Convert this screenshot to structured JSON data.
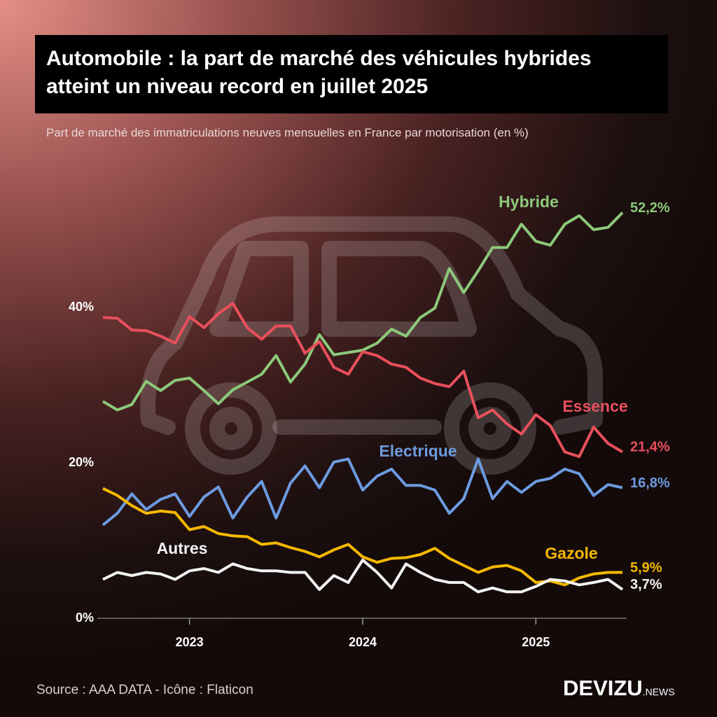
{
  "title": "Automobile : la part de marché des véhicules hybrides atteint un niveau record en juillet 2025",
  "subtitle": "Part de marché des immatriculations neuves mensuelles en France par motorisation (en %)",
  "source": "Source : AAA DATA - Icône : Flaticon",
  "brand": {
    "name": "DEVIZU",
    "suffix": ".NEWS"
  },
  "chart_data": {
    "type": "line",
    "categories": [
      null,
      null,
      null,
      null,
      null,
      null,
      "2023",
      null,
      null,
      null,
      null,
      null,
      null,
      null,
      null,
      null,
      null,
      null,
      "2024",
      null,
      null,
      null,
      null,
      null,
      null,
      null,
      null,
      null,
      null,
      null,
      "2025",
      null,
      null,
      null,
      null,
      null,
      null
    ],
    "ylim": [
      0,
      60
    ],
    "yticks": [
      {
        "value": 0,
        "label": "0%"
      },
      {
        "value": 20,
        "label": "20%"
      },
      {
        "value": 40,
        "label": "40%"
      }
    ],
    "series": [
      {
        "name": "Hybride",
        "color": "#8cc97a",
        "values": [
          27.9,
          26.8,
          27.5,
          30.5,
          29.3,
          30.6,
          30.9,
          29.3,
          27.6,
          29.4,
          30.4,
          31.4,
          33.8,
          30.4,
          32.7,
          36.5,
          33.9,
          34.2,
          34.5,
          35.4,
          37.2,
          36.3,
          38.7,
          39.9,
          45.0,
          41.9,
          44.7,
          47.7,
          47.7,
          50.7,
          48.5,
          48.0,
          50.7,
          51.8,
          50.0,
          50.3,
          52.2
        ],
        "value_labels": [
          null,
          null,
          null,
          null,
          null,
          null,
          null,
          null,
          null,
          null,
          null,
          null,
          null,
          null,
          null,
          null,
          null,
          null,
          null,
          null,
          null,
          null,
          null,
          null,
          null,
          null,
          null,
          null,
          null,
          null,
          null,
          null,
          null,
          null,
          null,
          null,
          "52,2%"
        ]
      },
      {
        "name": "Essence",
        "color": "#e8505b",
        "values": [
          38.7,
          38.6,
          37.1,
          37.0,
          36.3,
          35.4,
          38.8,
          37.4,
          39.2,
          40.5,
          37.4,
          35.9,
          37.6,
          37.6,
          34.1,
          35.6,
          32.3,
          31.4,
          34.3,
          33.8,
          32.7,
          32.3,
          30.9,
          30.2,
          29.8,
          31.8,
          25.8,
          26.8,
          25.0,
          23.7,
          26.2,
          24.8,
          21.4,
          20.8,
          24.6,
          22.5,
          21.4
        ],
        "value_labels": [
          null,
          null,
          null,
          null,
          null,
          null,
          null,
          null,
          null,
          null,
          null,
          null,
          null,
          null,
          null,
          null,
          null,
          null,
          null,
          null,
          null,
          null,
          null,
          null,
          null,
          null,
          null,
          null,
          null,
          null,
          null,
          null,
          null,
          null,
          null,
          null,
          "21,4%"
        ]
      },
      {
        "name": "Electrique",
        "color": "#6c9be0",
        "values": [
          12.0,
          13.5,
          16.0,
          14.0,
          15.3,
          16.0,
          13.1,
          15.6,
          16.9,
          12.9,
          15.6,
          17.6,
          12.9,
          17.4,
          19.6,
          16.8,
          20.1,
          20.5,
          16.5,
          18.3,
          19.2,
          17.1,
          17.1,
          16.5,
          13.5,
          15.4,
          20.5,
          15.4,
          17.6,
          16.2,
          17.6,
          18.0,
          19.2,
          18.6,
          15.8,
          17.2,
          16.8
        ],
        "value_labels": [
          null,
          null,
          null,
          null,
          null,
          null,
          null,
          null,
          null,
          null,
          null,
          null,
          null,
          null,
          null,
          null,
          null,
          null,
          null,
          null,
          null,
          null,
          null,
          null,
          null,
          null,
          null,
          null,
          null,
          null,
          null,
          null,
          null,
          null,
          null,
          null,
          "16,8%"
        ]
      },
      {
        "name": "Gazole",
        "color": "#f5b800",
        "values": [
          16.7,
          15.8,
          14.5,
          13.5,
          13.8,
          13.6,
          11.4,
          11.8,
          10.9,
          10.6,
          10.5,
          9.5,
          9.7,
          9.1,
          8.6,
          7.9,
          8.8,
          9.5,
          7.9,
          7.2,
          7.7,
          7.8,
          8.2,
          9.0,
          7.7,
          6.8,
          5.9,
          6.6,
          6.8,
          6.1,
          4.6,
          4.8,
          4.3,
          5.2,
          5.7,
          5.9,
          5.9
        ],
        "value_labels": [
          null,
          null,
          null,
          null,
          null,
          null,
          null,
          null,
          null,
          null,
          null,
          null,
          null,
          null,
          null,
          null,
          null,
          null,
          null,
          null,
          null,
          null,
          null,
          null,
          null,
          null,
          null,
          null,
          null,
          null,
          null,
          null,
          null,
          null,
          null,
          null,
          "5,9%"
        ]
      },
      {
        "name": "Autres",
        "color": "#f2f2f2",
        "values": [
          5.0,
          5.9,
          5.5,
          5.9,
          5.7,
          5.0,
          6.1,
          6.4,
          5.9,
          7.0,
          6.4,
          6.1,
          6.1,
          5.9,
          5.9,
          3.7,
          5.5,
          4.6,
          7.5,
          5.9,
          3.9,
          7.0,
          5.9,
          5.0,
          4.6,
          4.6,
          3.4,
          3.9,
          3.4,
          3.4,
          4.1,
          5.0,
          4.8,
          4.3,
          4.6,
          5.0,
          3.7
        ],
        "value_labels": [
          null,
          null,
          null,
          null,
          null,
          null,
          null,
          null,
          null,
          null,
          null,
          null,
          null,
          null,
          null,
          null,
          null,
          null,
          null,
          null,
          null,
          null,
          null,
          null,
          null,
          null,
          null,
          null,
          null,
          null,
          null,
          null,
          null,
          null,
          null,
          null,
          "3,7%"
        ]
      }
    ]
  }
}
